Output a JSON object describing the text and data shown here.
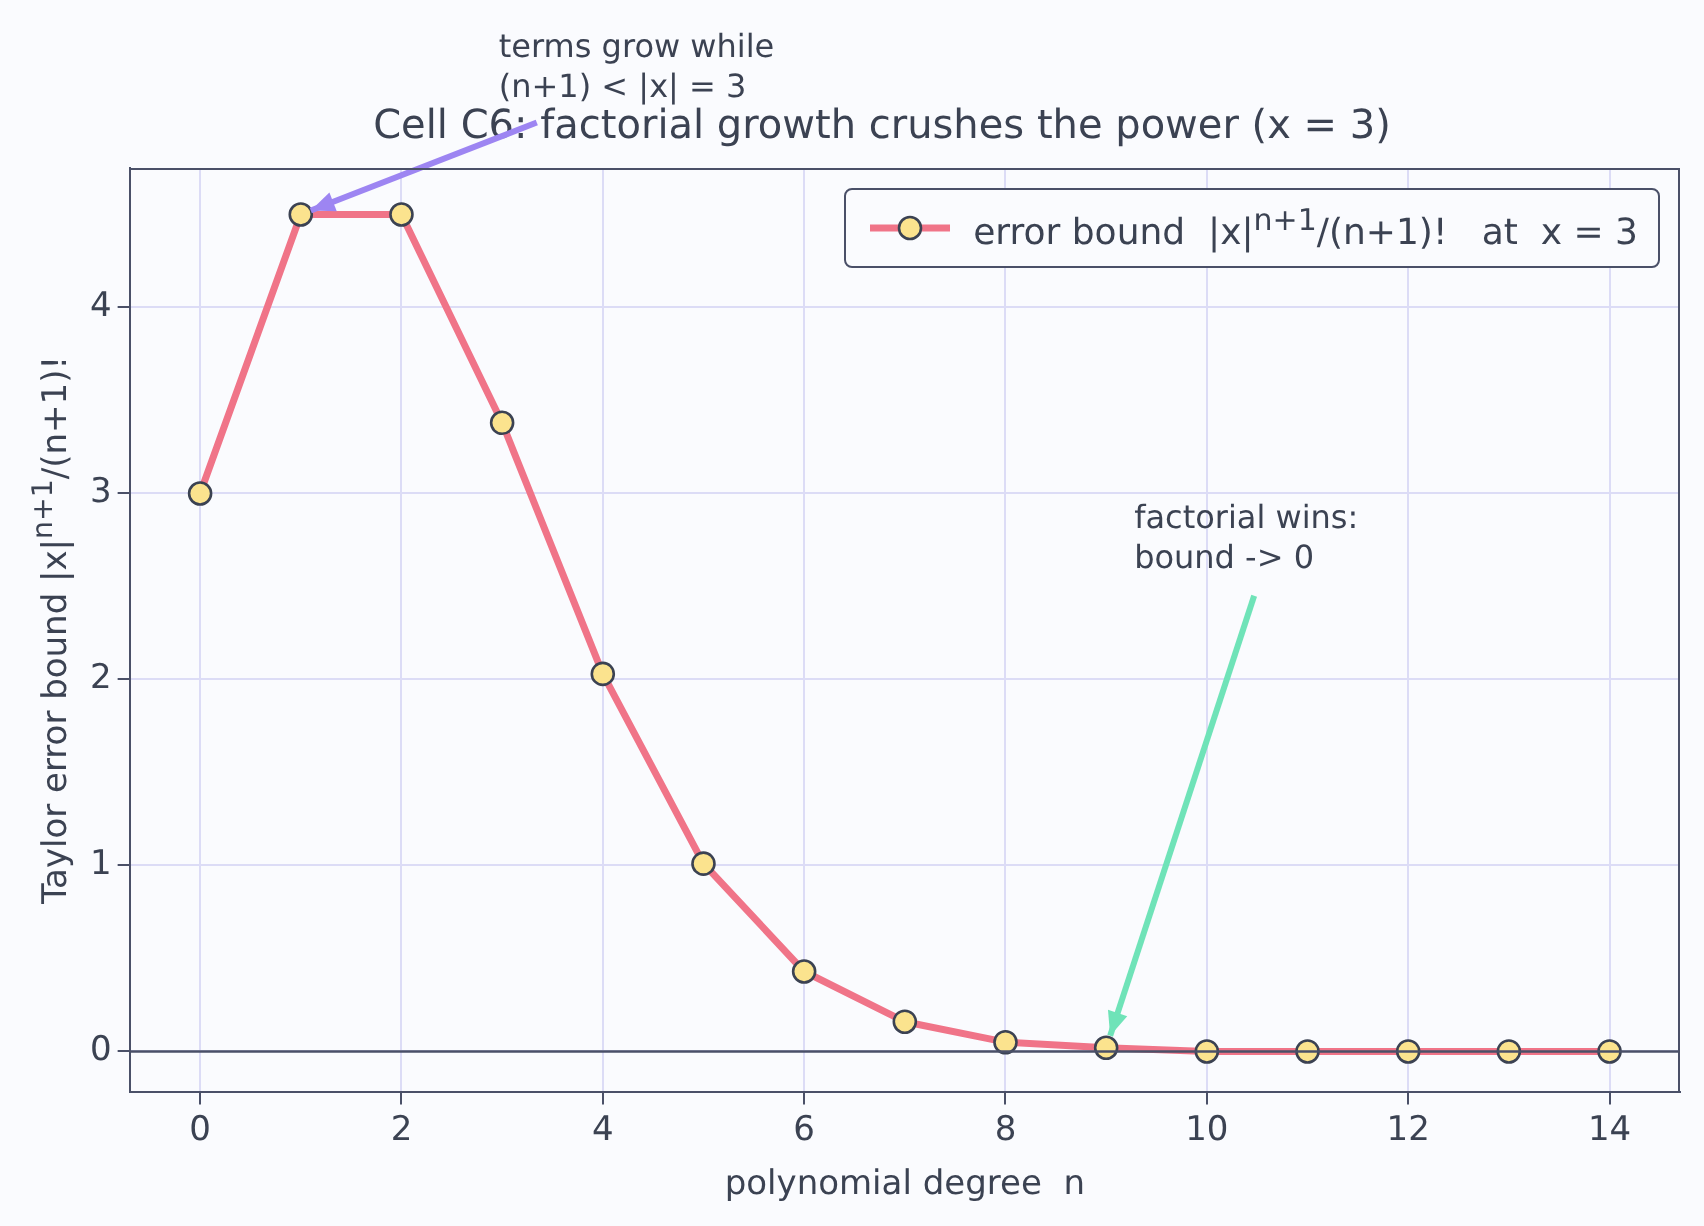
{
  "chart_data": {
    "type": "line",
    "title": "Cell C6: factorial growth crushes the power (x = 3)",
    "xlabel": "polynomial degree  n",
    "ylabel": "Taylor error bound  |x|$^{n+1}$/(n+1)!",
    "x": [
      0,
      1,
      2,
      3,
      4,
      5,
      6,
      7,
      8,
      9,
      10,
      11,
      12,
      13,
      14
    ],
    "series": [
      {
        "name": "error bound  |x|$^{n+1}$/(n+1)!   at  x = 3",
        "color": "#f07488",
        "values": [
          3,
          4.5,
          4.5,
          3.38,
          2.03,
          1.01,
          0.43,
          0.16,
          0.05,
          0.02,
          0,
          0,
          0,
          0,
          0
        ]
      }
    ],
    "xlim": [
      -0.7,
      14.7
    ],
    "xticks": [
      0,
      2,
      4,
      6,
      8,
      10,
      12,
      14
    ],
    "ylim": [
      -0.22,
      4.75
    ],
    "yticks": [
      0,
      1,
      2,
      3,
      4
    ],
    "grid": true,
    "legend": "top right",
    "marker": "circle",
    "line_style": "solid",
    "ref_lines": [
      {
        "axis": "y",
        "value": 0,
        "color": "#4a5068"
      }
    ],
    "annotations": [
      {
        "text": "terms grow while\n(n+1) < |x| = 3",
        "x": 1,
        "y": 4.5
      },
      {
        "text": "factorial wins:\nbound -> 0",
        "x": 9,
        "y": 0.02
      }
    ]
  }
}
